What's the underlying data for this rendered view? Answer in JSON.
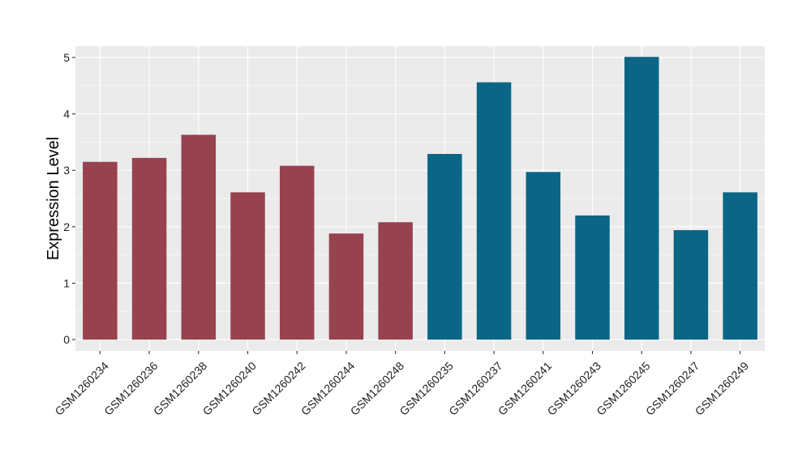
{
  "chart_data": {
    "type": "bar",
    "title": "",
    "xlabel": "",
    "ylabel": "Expression Level",
    "ylim": [
      -0.2,
      5.2
    ],
    "yticks": [
      0,
      1,
      2,
      3,
      4,
      5
    ],
    "grid": true,
    "categories": [
      "GSM1260234",
      "GSM1260236",
      "GSM1260238",
      "GSM1260240",
      "GSM1260242",
      "GSM1260244",
      "GSM1260248",
      "GSM1260235",
      "GSM1260237",
      "GSM1260241",
      "GSM1260243",
      "GSM1260245",
      "GSM1260247",
      "GSM1260249"
    ],
    "values": [
      3.15,
      3.22,
      3.63,
      2.61,
      3.08,
      1.88,
      2.08,
      3.29,
      4.56,
      2.97,
      2.2,
      5.01,
      1.94,
      2.61
    ],
    "groups": [
      0,
      0,
      0,
      0,
      0,
      0,
      0,
      1,
      1,
      1,
      1,
      1,
      1,
      1
    ],
    "group_colors": [
      "#98424f",
      "#0b6585"
    ],
    "panel_background": "#ebebeb",
    "grid_color": "#ffffff"
  }
}
